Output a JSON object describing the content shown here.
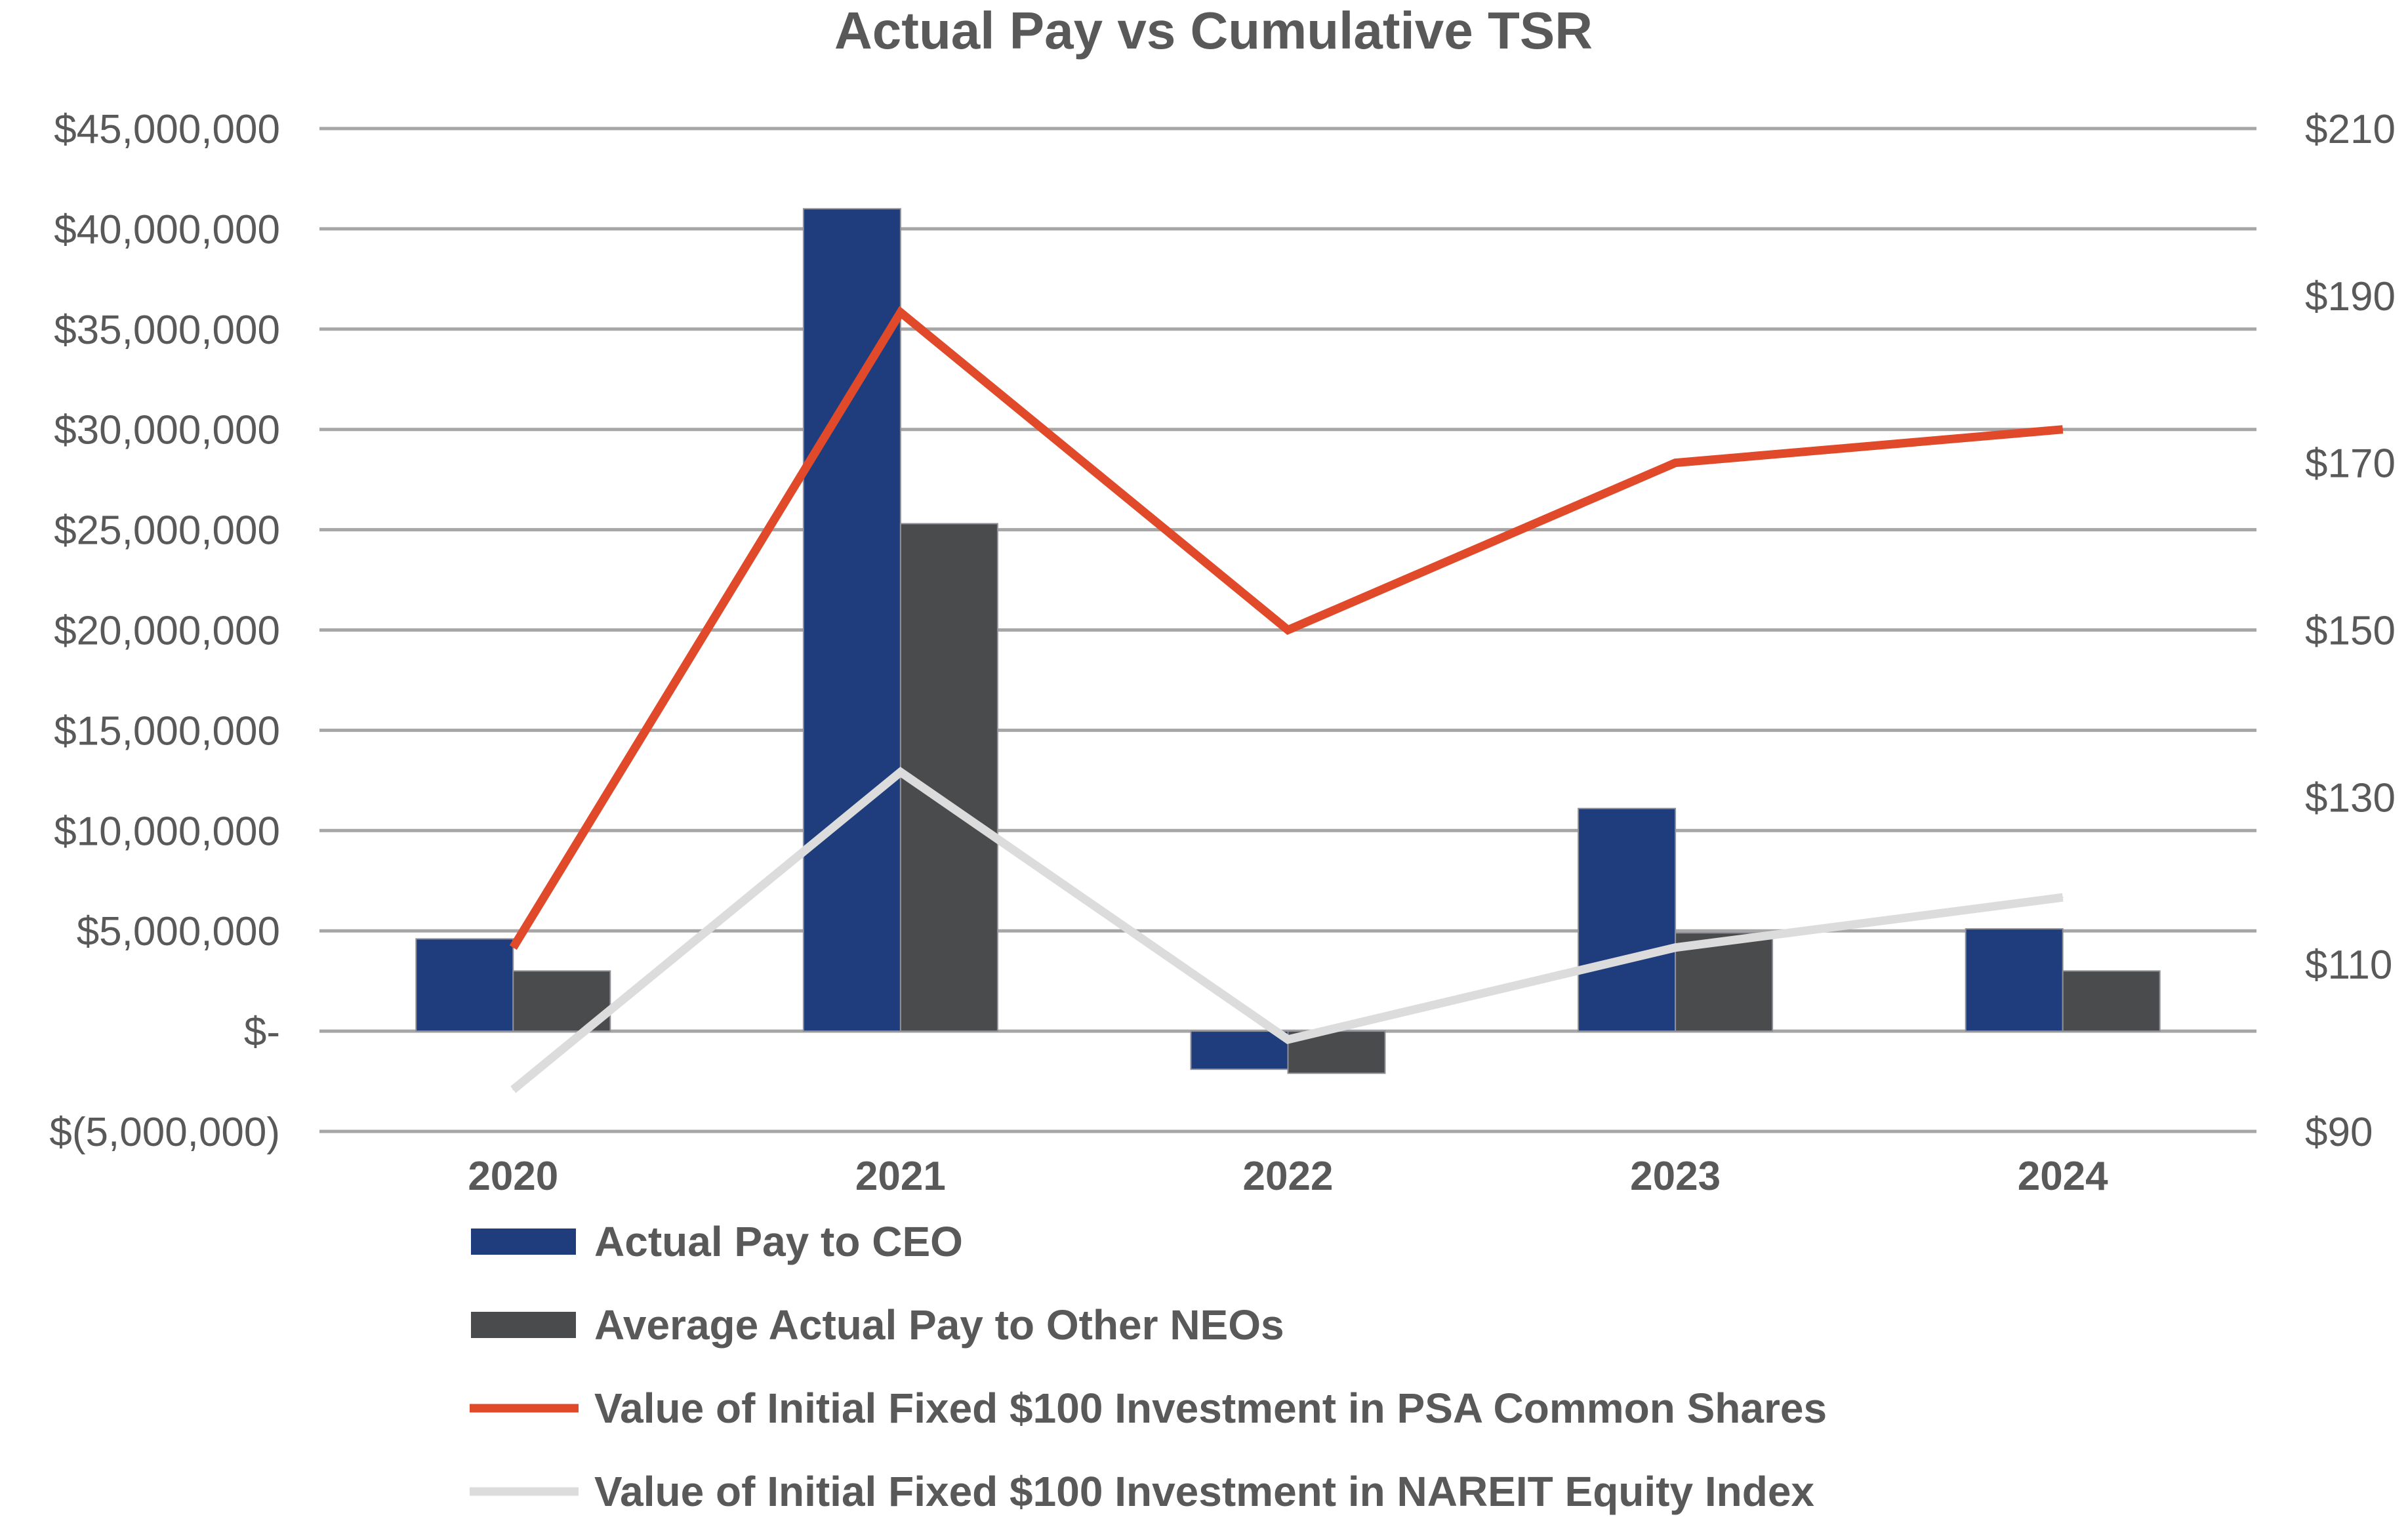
{
  "chart_data": {
    "type": "bar",
    "title": "Actual Pay vs Cumulative TSR",
    "categories": [
      "2020",
      "2021",
      "2022",
      "2023",
      "2024"
    ],
    "y_left": {
      "range": [
        -5000000,
        45000000
      ],
      "ticks": [
        -5000000,
        0,
        5000000,
        10000000,
        15000000,
        20000000,
        25000000,
        30000000,
        35000000,
        40000000,
        45000000
      ],
      "tick_labels": [
        "$(5,000,000)",
        "$-",
        "$5,000,000",
        "$10,000,000",
        "$15,000,000",
        "$20,000,000",
        "$25,000,000",
        "$30,000,000",
        "$35,000,000",
        "$40,000,000",
        "$45,000,000"
      ]
    },
    "y_right": {
      "range": [
        90,
        210
      ],
      "ticks": [
        90,
        110,
        130,
        150,
        170,
        190,
        210
      ],
      "tick_labels": [
        "$90",
        "$110",
        "$130",
        "$150",
        "$170",
        "$190",
        "$210"
      ]
    },
    "grid": true,
    "legend_position": "bottom",
    "series": [
      {
        "name": "Actual Pay to CEO",
        "type": "bar",
        "axis": "left",
        "color": "#1f3c7d",
        "values": [
          4600000,
          41000000,
          -1900000,
          11100000,
          5100000
        ]
      },
      {
        "name": "Average Actual Pay to Other NEOs",
        "type": "bar",
        "axis": "left",
        "color": "#4a4b4d",
        "values": [
          3000000,
          25300000,
          -2100000,
          4900000,
          3000000
        ]
      },
      {
        "name": "Value of Initial Fixed $100 Investment in PSA Common Shares",
        "type": "line",
        "axis": "right",
        "color": "#e04a2a",
        "values": [
          112,
          188,
          150,
          170,
          174
        ]
      },
      {
        "name": "Value of Initial Fixed $100 Investment in NAREIT Equity Index",
        "type": "line",
        "axis": "right",
        "color": "#dcdcdc",
        "values": [
          95,
          133,
          101,
          112,
          118
        ]
      }
    ]
  }
}
